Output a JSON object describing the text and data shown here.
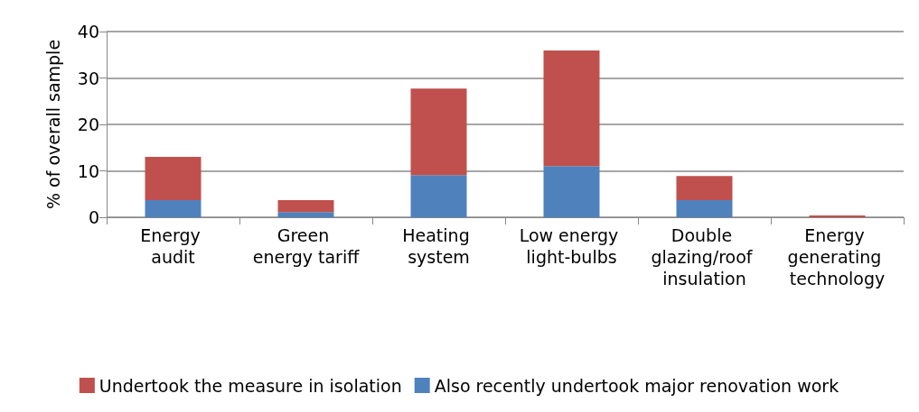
{
  "chart_data": {
    "type": "bar",
    "stacked": true,
    "ylabel": "% of overall sample",
    "categories": [
      "Energy audit",
      "Green energy tariff",
      "Heating system",
      "Low energy light-bulbs",
      "Double glazing/roof insulation",
      "Energy generating technology"
    ],
    "series": [
      {
        "name": "Also recently undertook major renovation work",
        "color": "#4f81bd",
        "values": [
          3.7,
          1.1,
          9.1,
          11.0,
          3.7,
          null
        ]
      },
      {
        "name": "Undertook the measure in isolation",
        "color": "#c0504d",
        "values": [
          9.3,
          2.6,
          18.6,
          24.9,
          5.2,
          0.4
        ]
      }
    ],
    "ylim": [
      0,
      40
    ],
    "yticks": [
      0,
      10,
      20,
      30,
      40
    ],
    "grid": "y",
    "legend": "bottom"
  }
}
